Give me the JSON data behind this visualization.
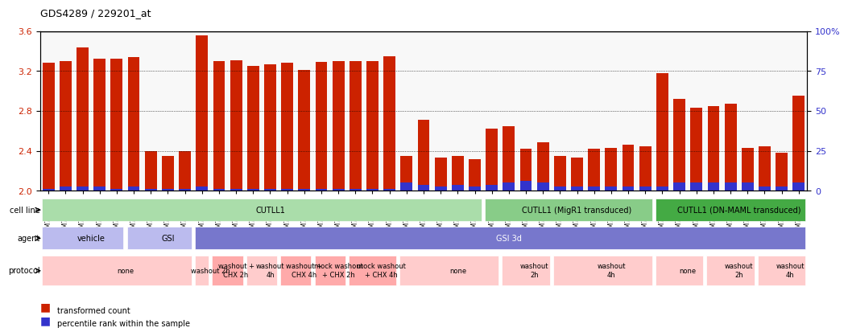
{
  "title": "GDS4289 / 229201_at",
  "samples": [
    "GSM731500",
    "GSM731501",
    "GSM731502",
    "GSM731503",
    "GSM731504",
    "GSM731505",
    "GSM731518",
    "GSM731519",
    "GSM731520",
    "GSM731506",
    "GSM731507",
    "GSM731508",
    "GSM731509",
    "GSM731510",
    "GSM731511",
    "GSM731512",
    "GSM731513",
    "GSM731514",
    "GSM731515",
    "GSM731516",
    "GSM731517",
    "GSM731521",
    "GSM731522",
    "GSM731523",
    "GSM731524",
    "GSM731525",
    "GSM731526",
    "GSM731527",
    "GSM731528",
    "GSM731529",
    "GSM731531",
    "GSM731532",
    "GSM731533",
    "GSM731534",
    "GSM731535",
    "GSM731536",
    "GSM731537",
    "GSM731538",
    "GSM731539",
    "GSM731540",
    "GSM731541",
    "GSM731542",
    "GSM731543",
    "GSM731544",
    "GSM731545"
  ],
  "red_values": [
    3.28,
    3.3,
    3.44,
    3.32,
    3.32,
    3.34,
    2.4,
    2.35,
    2.4,
    3.56,
    3.3,
    3.31,
    3.25,
    3.27,
    3.28,
    3.21,
    3.29,
    3.3,
    3.3,
    3.3,
    3.35,
    2.35,
    2.71,
    2.33,
    2.35,
    2.32,
    2.62,
    2.65,
    2.42,
    2.49,
    2.35,
    2.33,
    2.42,
    2.43,
    2.46,
    2.45,
    3.18,
    2.92,
    2.83,
    2.85,
    2.87,
    2.43,
    2.45,
    2.38,
    2.95
  ],
  "blue_values": [
    0.02,
    0.04,
    0.04,
    0.04,
    0.02,
    0.04,
    0.02,
    0.02,
    0.02,
    0.04,
    0.02,
    0.02,
    0.02,
    0.02,
    0.02,
    0.02,
    0.02,
    0.02,
    0.02,
    0.02,
    0.02,
    0.08,
    0.06,
    0.04,
    0.06,
    0.04,
    0.06,
    0.08,
    0.1,
    0.08,
    0.04,
    0.04,
    0.04,
    0.04,
    0.04,
    0.04,
    0.04,
    0.08,
    0.08,
    0.08,
    0.08,
    0.08,
    0.04,
    0.04,
    0.08
  ],
  "y_min": 2.0,
  "y_max": 3.6,
  "y_ticks_left": [
    2.0,
    2.4,
    2.8,
    3.2,
    3.6
  ],
  "y_ticks_right": [
    0,
    25,
    50,
    75,
    100
  ],
  "bar_color": "#cc2200",
  "blue_color": "#3333cc",
  "bg_color": "#ffffff",
  "cell_line_groups": [
    {
      "label": "CUTLL1",
      "start": 0,
      "end": 26,
      "color": "#aaddaa"
    },
    {
      "label": "CUTLL1 (MigR1 transduced)",
      "start": 26,
      "end": 36,
      "color": "#88cc88"
    },
    {
      "label": "CUTLL1 (DN-MAML transduced)",
      "start": 36,
      "end": 45,
      "color": "#44aa44"
    }
  ],
  "agent_groups": [
    {
      "label": "vehicle",
      "start": 0,
      "end": 5,
      "color": "#bbbbee"
    },
    {
      "label": "GSI",
      "start": 5,
      "end": 9,
      "color": "#bbbbee"
    },
    {
      "label": "GSI 3d",
      "start": 9,
      "end": 45,
      "color": "#7777cc"
    }
  ],
  "protocol_groups": [
    {
      "label": "none",
      "start": 0,
      "end": 9,
      "color": "#ffcccc"
    },
    {
      "label": "washout 2h",
      "start": 9,
      "end": 10,
      "color": "#ffcccc"
    },
    {
      "label": "washout +\nCHX 2h",
      "start": 10,
      "end": 12,
      "color": "#ffaaaa"
    },
    {
      "label": "washout\n4h",
      "start": 12,
      "end": 14,
      "color": "#ffcccc"
    },
    {
      "label": "washout +\nCHX 4h",
      "start": 14,
      "end": 16,
      "color": "#ffaaaa"
    },
    {
      "label": "mock washout\n+ CHX 2h",
      "start": 16,
      "end": 18,
      "color": "#ffaaaa"
    },
    {
      "label": "mock washout\n+ CHX 4h",
      "start": 18,
      "end": 21,
      "color": "#ffaaaa"
    },
    {
      "label": "none",
      "start": 21,
      "end": 27,
      "color": "#ffcccc"
    },
    {
      "label": "washout\n2h",
      "start": 27,
      "end": 30,
      "color": "#ffcccc"
    },
    {
      "label": "washout\n4h",
      "start": 30,
      "end": 36,
      "color": "#ffcccc"
    },
    {
      "label": "none",
      "start": 36,
      "end": 39,
      "color": "#ffcccc"
    },
    {
      "label": "washout\n2h",
      "start": 39,
      "end": 42,
      "color": "#ffcccc"
    },
    {
      "label": "washout\n4h",
      "start": 42,
      "end": 45,
      "color": "#ffcccc"
    }
  ]
}
